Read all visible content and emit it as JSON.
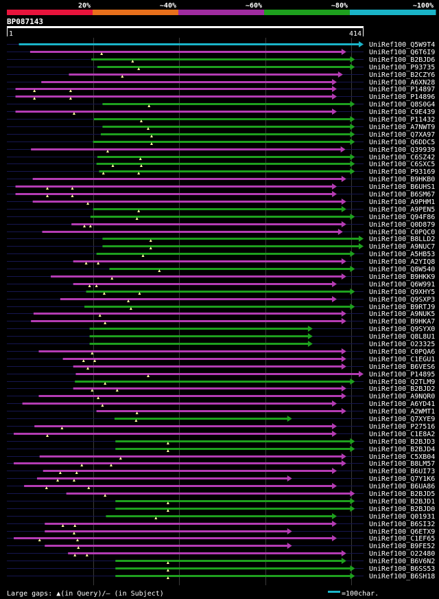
{
  "scale": {
    "colors": [
      "#e8143c",
      "#e8701c",
      "#a02ca0",
      "#1ea01e",
      "#1ab4c8"
    ],
    "labels": [
      "20%",
      "~40%",
      "~60%",
      "~80%",
      "~100%"
    ]
  },
  "query": {
    "id": "BP087143",
    "start_label": "1",
    "end_label": "414",
    "length": 414
  },
  "colors": {
    "cyan": "#1ab4c8",
    "magenta": "#b43cb4",
    "green": "#1ea01e",
    "query_bar": "#ffffff",
    "guide": "#161650",
    "grid": "#3a3a3a",
    "text": "#ffffff"
  },
  "legend": {
    "gaps_text": "Large gaps: ▲(in Query)/– (in Subject)",
    "scale_text": "=100char."
  },
  "hits": [
    {
      "id": "UniRef100_Q5W9T4",
      "c": "cyan",
      "s": 14,
      "e": 414,
      "g": []
    },
    {
      "id": "UniRef100_Q6T6I9",
      "c": "magenta",
      "s": 27,
      "e": 394,
      "g": [
        110
      ]
    },
    {
      "id": "UniRef100_B2BJD6",
      "c": "green",
      "s": 98,
      "e": 404,
      "g": [
        146
      ]
    },
    {
      "id": "UniRef100_P93735",
      "c": "green",
      "s": 105,
      "e": 404,
      "g": [
        153
      ]
    },
    {
      "id": "UniRef100_B2CZY6",
      "c": "magenta",
      "s": 72,
      "e": 390,
      "g": [
        134
      ]
    },
    {
      "id": "UniRef100_A6XN28",
      "c": "magenta",
      "s": 40,
      "e": 383,
      "g": []
    },
    {
      "id": "UniRef100_P14897",
      "c": "magenta",
      "s": 10,
      "e": 383,
      "g": [
        32,
        74
      ]
    },
    {
      "id": "UniRef100_P14896",
      "c": "magenta",
      "s": 10,
      "e": 383,
      "g": [
        32,
        74
      ]
    },
    {
      "id": "UniRef100_Q8S0G4",
      "c": "green",
      "s": 111,
      "e": 404,
      "g": [
        165
      ]
    },
    {
      "id": "UniRef100_C9E439",
      "c": "magenta",
      "s": 10,
      "e": 383,
      "g": [
        78
      ]
    },
    {
      "id": "UniRef100_P11432",
      "c": "green",
      "s": 101,
      "e": 404,
      "g": [
        156
      ]
    },
    {
      "id": "UniRef100_A7NWT9",
      "c": "green",
      "s": 111,
      "e": 404,
      "g": [
        164
      ]
    },
    {
      "id": "UniRef100_Q7XA97",
      "c": "green",
      "s": 109,
      "e": 404,
      "g": [
        168
      ]
    },
    {
      "id": "UniRef100_Q6DDC5",
      "c": "green",
      "s": 100,
      "e": 404,
      "g": [
        168
      ]
    },
    {
      "id": "UniRef100_Q39939",
      "c": "magenta",
      "s": 28,
      "e": 393,
      "g": [
        117
      ]
    },
    {
      "id": "UniRef100_C6SZ42",
      "c": "green",
      "s": 105,
      "e": 404,
      "g": [
        155
      ]
    },
    {
      "id": "UniRef100_C6SXC5",
      "c": "green",
      "s": 104,
      "e": 404,
      "g": [
        123,
        156
      ]
    },
    {
      "id": "UniRef100_P93169",
      "c": "green",
      "s": 107,
      "e": 404,
      "g": [
        112,
        153
      ]
    },
    {
      "id": "UniRef100_B9HKB0",
      "c": "magenta",
      "s": 30,
      "e": 394,
      "g": []
    },
    {
      "id": "UniRef100_B6UHS1",
      "c": "magenta",
      "s": 10,
      "e": 383,
      "g": [
        47,
        76
      ]
    },
    {
      "id": "UniRef100_B6SM67",
      "c": "magenta",
      "s": 10,
      "e": 383,
      "g": [
        47,
        76
      ]
    },
    {
      "id": "UniRef100_A9PHM1",
      "c": "magenta",
      "s": 30,
      "e": 394,
      "g": [
        94
      ]
    },
    {
      "id": "UniRef100_A9PEN5",
      "c": "green",
      "s": 100,
      "e": 394,
      "g": [
        153
      ]
    },
    {
      "id": "UniRef100_Q94F86",
      "c": "green",
      "s": 97,
      "e": 404,
      "g": [
        151
      ]
    },
    {
      "id": "UniRef100_Q0D879",
      "c": "magenta",
      "s": 75,
      "e": 394,
      "g": [
        90,
        97
      ]
    },
    {
      "id": "UniRef100_C0PQC0",
      "c": "magenta",
      "s": 41,
      "e": 390,
      "g": []
    },
    {
      "id": "UniRef100_B8LLD2",
      "c": "green",
      "s": 111,
      "e": 414,
      "g": [
        167
      ]
    },
    {
      "id": "UniRef100_A9NUC7",
      "c": "green",
      "s": 111,
      "e": 414,
      "g": [
        167
      ]
    },
    {
      "id": "UniRef100_A5HB53",
      "c": "green",
      "s": 104,
      "e": 404,
      "g": [
        158
      ]
    },
    {
      "id": "UniRef100_A2YIQ8",
      "c": "magenta",
      "s": 77,
      "e": 394,
      "g": [
        92,
        106
      ]
    },
    {
      "id": "UniRef100_Q8W540",
      "c": "green",
      "s": 119,
      "e": 404,
      "g": [
        177
      ]
    },
    {
      "id": "UniRef100_B9HKK9",
      "c": "magenta",
      "s": 51,
      "e": 394,
      "g": [
        122
      ]
    },
    {
      "id": "UniRef100_Q6W991",
      "c": "magenta",
      "s": 77,
      "e": 383,
      "g": [
        96,
        104
      ]
    },
    {
      "id": "UniRef100_Q9XHY5",
      "c": "green",
      "s": 92,
      "e": 404,
      "g": [
        113,
        154
      ]
    },
    {
      "id": "UniRef100_Q9SXP3",
      "c": "magenta",
      "s": 62,
      "e": 383,
      "g": [
        141
      ]
    },
    {
      "id": "UniRef100_B9RTJ9",
      "c": "green",
      "s": 90,
      "e": 404,
      "g": [
        144
      ]
    },
    {
      "id": "UniRef100_A9NUK5",
      "c": "magenta",
      "s": 31,
      "e": 394,
      "g": [
        108
      ]
    },
    {
      "id": "UniRef100_B9HKA7",
      "c": "magenta",
      "s": 28,
      "e": 394,
      "g": [
        114
      ]
    },
    {
      "id": "UniRef100_Q9SYX0",
      "c": "green",
      "s": 96,
      "e": 355,
      "g": []
    },
    {
      "id": "UniRef100_Q8L8U1",
      "c": "green",
      "s": 96,
      "e": 355,
      "g": []
    },
    {
      "id": "UniRef100_O23325",
      "c": "green",
      "s": 96,
      "e": 355,
      "g": []
    },
    {
      "id": "UniRef100_C0PQA6",
      "c": "magenta",
      "s": 37,
      "e": 394,
      "g": [
        99
      ]
    },
    {
      "id": "UniRef100_C1EGU1",
      "c": "magenta",
      "s": 65,
      "e": 394,
      "g": [
        89,
        102
      ]
    },
    {
      "id": "UniRef100_B6VES6",
      "c": "magenta",
      "s": 77,
      "e": 394,
      "g": [
        94
      ]
    },
    {
      "id": "UniRef100_P14895",
      "c": "magenta",
      "s": 80,
      "e": 414,
      "g": [
        164
      ]
    },
    {
      "id": "UniRef100_Q2TLM9",
      "c": "green",
      "s": 79,
      "e": 404,
      "g": [
        114
      ]
    },
    {
      "id": "UniRef100_B2BJD2",
      "c": "magenta",
      "s": 77,
      "e": 394,
      "g": [
        99,
        128
      ]
    },
    {
      "id": "UniRef100_A9NQR0",
      "c": "magenta",
      "s": 37,
      "e": 394,
      "g": [
        106
      ]
    },
    {
      "id": "UniRef100_A6YD41",
      "c": "magenta",
      "s": 18,
      "e": 383,
      "g": [
        111
      ]
    },
    {
      "id": "UniRef100_A2WMT1",
      "c": "magenta",
      "s": 104,
      "e": 394,
      "g": [
        151
      ]
    },
    {
      "id": "UniRef100_Q7XYE9",
      "c": "green",
      "s": 125,
      "e": 331,
      "g": [
        150
      ]
    },
    {
      "id": "UniRef100_P27516",
      "c": "magenta",
      "s": 32,
      "e": 383,
      "g": [
        64
      ]
    },
    {
      "id": "UniRef100_C1E8A2",
      "c": "magenta",
      "s": 8,
      "e": 383,
      "g": [
        47
      ]
    },
    {
      "id": "UniRef100_B2BJD3",
      "c": "green",
      "s": 126,
      "e": 404,
      "g": [
        187
      ]
    },
    {
      "id": "UniRef100_B2BJD4",
      "c": "green",
      "s": 126,
      "e": 404,
      "g": [
        187
      ]
    },
    {
      "id": "UniRef100_C5XB04",
      "c": "magenta",
      "s": 38,
      "e": 394,
      "g": [
        132
      ]
    },
    {
      "id": "UniRef100_B8LM57",
      "c": "magenta",
      "s": 8,
      "e": 394,
      "g": [
        87,
        121
      ]
    },
    {
      "id": "UniRef100_B6UI73",
      "c": "magenta",
      "s": 42,
      "e": 383,
      "g": [
        62,
        81
      ]
    },
    {
      "id": "UniRef100_Q7Y1K6",
      "c": "magenta",
      "s": 35,
      "e": 331,
      "g": [
        59,
        78
      ]
    },
    {
      "id": "UniRef100_B6UA86",
      "c": "magenta",
      "s": 20,
      "e": 383,
      "g": [
        46,
        95
      ]
    },
    {
      "id": "UniRef100_B2BJD5",
      "c": "magenta",
      "s": 69,
      "e": 404,
      "g": [
        114
      ]
    },
    {
      "id": "UniRef100_B2BJD1",
      "c": "green",
      "s": 126,
      "e": 404,
      "g": [
        187
      ]
    },
    {
      "id": "UniRef100_B2BJD0",
      "c": "green",
      "s": 126,
      "e": 404,
      "g": [
        187
      ]
    },
    {
      "id": "UniRef100_Q01931",
      "c": "green",
      "s": 115,
      "e": 383,
      "g": [
        173
      ]
    },
    {
      "id": "UniRef100_B6SI32",
      "c": "magenta",
      "s": 44,
      "e": 383,
      "g": [
        65,
        79
      ]
    },
    {
      "id": "UniRef100_Q6ETX9",
      "c": "magenta",
      "s": 44,
      "e": 331,
      "g": [
        78
      ]
    },
    {
      "id": "UniRef100_C1EF65",
      "c": "magenta",
      "s": 8,
      "e": 383,
      "g": [
        38,
        82
      ]
    },
    {
      "id": "UniRef100_B9FE52",
      "c": "magenta",
      "s": 44,
      "e": 331,
      "g": [
        83
      ]
    },
    {
      "id": "UniRef100_O22480",
      "c": "magenta",
      "s": 71,
      "e": 394,
      "g": [
        79,
        93
      ]
    },
    {
      "id": "UniRef100_B6V6N2",
      "c": "green",
      "s": 126,
      "e": 394,
      "g": [
        187
      ]
    },
    {
      "id": "UniRef100_B6SS53",
      "c": "green",
      "s": 126,
      "e": 404,
      "g": [
        187
      ]
    },
    {
      "id": "UniRef100_B6SH18",
      "c": "green",
      "s": 126,
      "e": 404,
      "g": [
        187
      ]
    }
  ]
}
